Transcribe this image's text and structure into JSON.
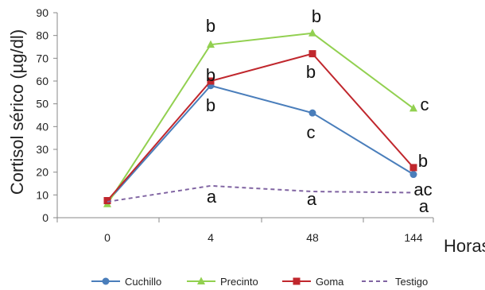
{
  "chart_data": {
    "type": "line",
    "categories": [
      "0",
      "4",
      "48",
      "144"
    ],
    "xlabel": "Horas",
    "ylabel": "Cortisol sérico (µg/dl)",
    "ylim": [
      0,
      90
    ],
    "yticks": [
      0,
      10,
      20,
      30,
      40,
      50,
      60,
      70,
      80,
      90
    ],
    "grid": false,
    "legend_position": "bottom",
    "series": [
      {
        "name": "Cuchillo",
        "values": [
          7,
          58,
          46,
          19
        ],
        "color": "#4a7ebb",
        "marker": "circle",
        "dash": false,
        "labels": [
          "",
          "b",
          "c",
          "ac"
        ]
      },
      {
        "name": "Precinto",
        "values": [
          6,
          76,
          81,
          48
        ],
        "color": "#92d050",
        "marker": "triangle",
        "dash": false,
        "labels": [
          "",
          "b",
          "b",
          "c"
        ]
      },
      {
        "name": "Goma",
        "values": [
          7.5,
          60,
          72,
          22
        ],
        "color": "#c0272d",
        "marker": "square",
        "dash": false,
        "labels": [
          "",
          "b",
          "b",
          "b"
        ]
      },
      {
        "name": "Testigo",
        "values": [
          7,
          14,
          11.5,
          11
        ],
        "color": "#8064a2",
        "marker": "none",
        "dash": true,
        "labels": [
          "",
          "a",
          "a",
          "a"
        ]
      }
    ]
  }
}
